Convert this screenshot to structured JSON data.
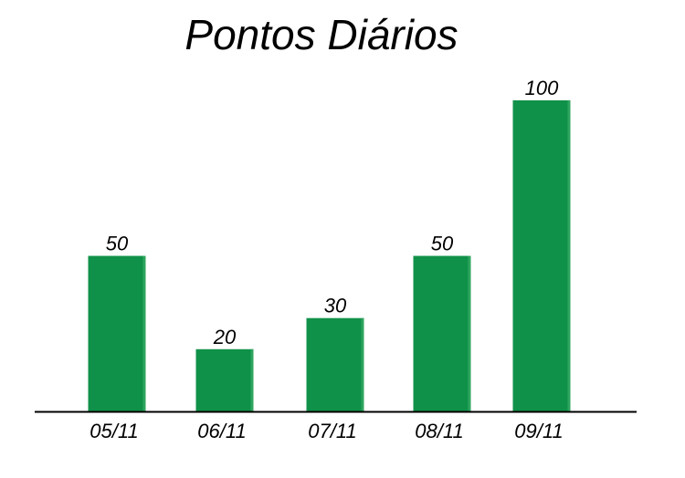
{
  "chart_data": {
    "type": "bar",
    "title": "Pontos Diários",
    "categories": [
      "05/11",
      "06/11",
      "07/11",
      "08/11",
      "09/11"
    ],
    "values": [
      50,
      20,
      30,
      50,
      100
    ],
    "xlabel": "",
    "ylabel": "",
    "ylim": [
      0,
      100
    ],
    "grid": false,
    "data_labels": true,
    "bar_color": "#109149",
    "bar_edge_color": "#2ea55e"
  }
}
